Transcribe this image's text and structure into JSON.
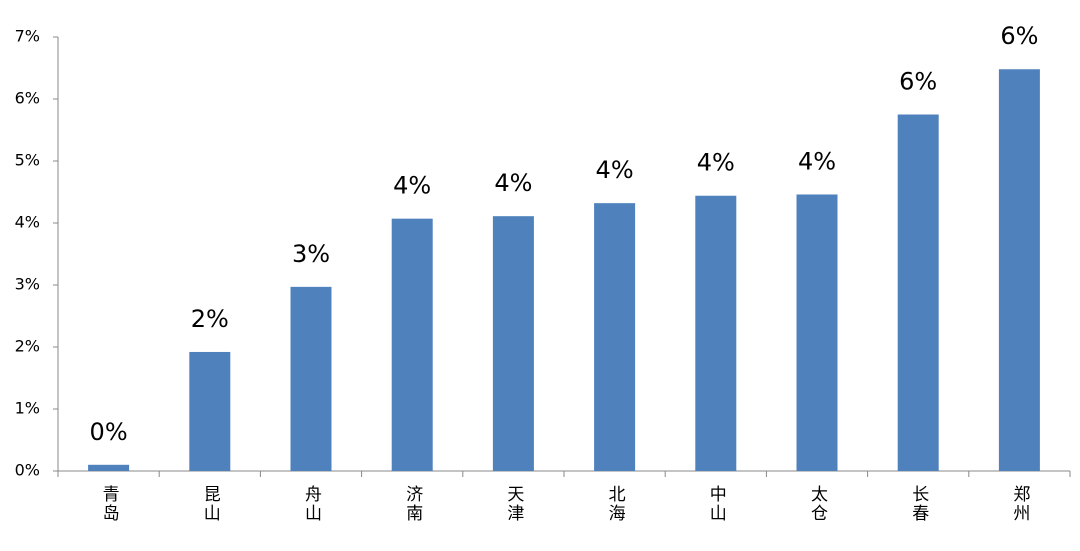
{
  "chart_data": {
    "type": "bar",
    "categories": [
      "青岛",
      "昆山",
      "舟山",
      "济南",
      "天津",
      "北海",
      "中山",
      "太仓",
      "长春",
      "郑州"
    ],
    "values": [
      0.1,
      1.92,
      2.97,
      4.07,
      4.11,
      4.32,
      4.44,
      4.46,
      5.75,
      6.48
    ],
    "value_labels": [
      "0%",
      "2%",
      "3%",
      "4%",
      "4%",
      "4%",
      "4%",
      "4%",
      "6%",
      "6%"
    ],
    "color": "#4f81bd",
    "ylim": [
      0,
      7
    ],
    "yticks": [
      {
        "value": 0,
        "label": "0%"
      },
      {
        "value": 1,
        "label": "1%"
      },
      {
        "value": 2,
        "label": "2%"
      },
      {
        "value": 3,
        "label": "3%"
      },
      {
        "value": 4,
        "label": "4%"
      },
      {
        "value": 5,
        "label": "5%"
      },
      {
        "value": 6,
        "label": "6%"
      },
      {
        "value": 7,
        "label": "7%"
      }
    ],
    "grid": false
  }
}
